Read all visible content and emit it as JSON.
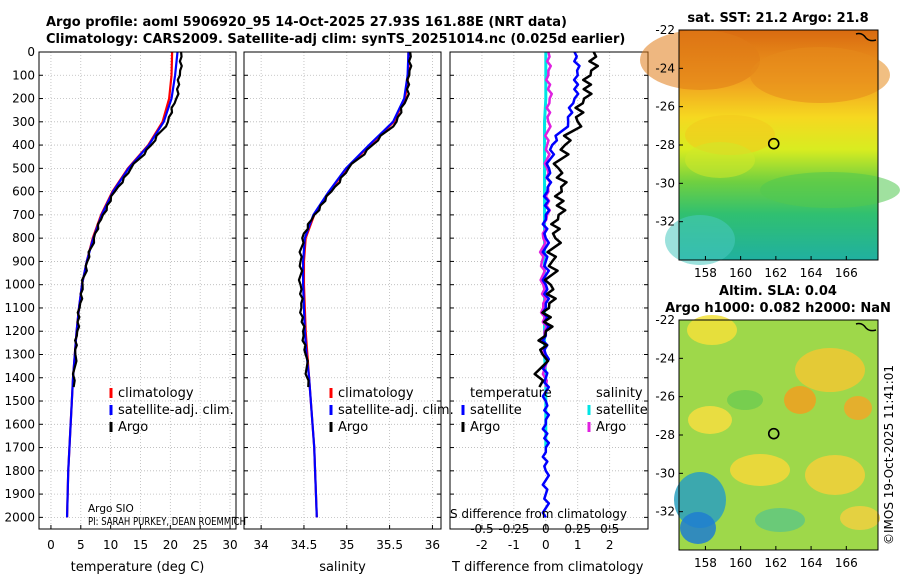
{
  "figure": {
    "title_line1": "Argo profile: aoml 5906920_95 14-Oct-2025 27.93S 161.88E (NRT data)",
    "title_line2": "Climatology: CARS2009. Satellite-adj clim: synTS_20251014.nc (0.025d earlier)",
    "footer_left_1": "Argo SIO",
    "footer_left_2": "PI: SARAH PURKEY, DEAN ROEMMICH",
    "watermark": "©IMOS 19-Oct-2025 11:41:01",
    "colors": {
      "climatology": "#ff0000",
      "satellite": "#0000ff",
      "argo": "#000000",
      "sal_satellite": "#00e5e5",
      "sal_argo": "#e020e0"
    }
  },
  "chart_data": [
    {
      "name": "temperature-profile",
      "type": "line",
      "xlabel": "temperature (deg C)",
      "ylabel": "",
      "xlim": [
        -2,
        31
      ],
      "ylim": [
        2050,
        0
      ],
      "xticks": [
        0,
        5,
        10,
        15,
        20,
        25,
        30
      ],
      "yticks": [
        0,
        100,
        200,
        300,
        400,
        500,
        600,
        700,
        800,
        900,
        1000,
        1100,
        1200,
        1300,
        1400,
        1500,
        1600,
        1700,
        1800,
        1900,
        2000
      ],
      "legend": [
        "climatology",
        "satellite-adj. clim.",
        "Argo"
      ],
      "legend_position": "lower-right",
      "series": [
        {
          "name": "climatology",
          "color": "#ff0000",
          "x": [
            20.3,
            20.2,
            19.8,
            18.7,
            16.3,
            12.9,
            10.3,
            8.4,
            7.0,
            6.0,
            5.2,
            4.7,
            4.3,
            4.0,
            3.7,
            3.5,
            3.3,
            3.1,
            2.9,
            2.8,
            2.7
          ],
          "y": [
            0,
            100,
            200,
            300,
            400,
            500,
            600,
            700,
            800,
            900,
            1000,
            1100,
            1200,
            1300,
            1400,
            1500,
            1600,
            1700,
            1800,
            1900,
            2000
          ]
        },
        {
          "name": "satellite-adj. clim.",
          "color": "#0000ff",
          "x": [
            21.2,
            20.8,
            20.2,
            18.9,
            16.4,
            13.0,
            10.4,
            8.5,
            7.1,
            6.0,
            5.2,
            4.7,
            4.3,
            4.0,
            3.7,
            3.5,
            3.3,
            3.1,
            2.9,
            2.8,
            2.7
          ],
          "y": [
            0,
            100,
            200,
            300,
            400,
            500,
            600,
            700,
            800,
            900,
            1000,
            1100,
            1200,
            1300,
            1400,
            1500,
            1600,
            1700,
            1800,
            1900,
            2000
          ]
        },
        {
          "name": "Argo",
          "color": "#000000",
          "x": [
            21.8,
            21.6,
            21.0,
            19.6,
            16.8,
            13.4,
            10.7,
            8.7,
            7.2,
            6.1,
            5.3,
            4.8,
            4.4,
            4.1,
            3.8
          ],
          "y": [
            0,
            100,
            200,
            300,
            400,
            500,
            600,
            700,
            800,
            900,
            1000,
            1100,
            1200,
            1300,
            1440
          ]
        }
      ]
    },
    {
      "name": "salinity-profile",
      "type": "line",
      "xlabel": "salinity",
      "ylabel": "",
      "xlim": [
        33.8,
        36.1
      ],
      "ylim": [
        2050,
        0
      ],
      "xticks": [
        34,
        34.5,
        35,
        35.5,
        36
      ],
      "legend": [
        "climatology",
        "satellite-adj. clim.",
        "Argo"
      ],
      "legend_position": "lower-right",
      "series": [
        {
          "name": "climatology",
          "color": "#ff0000",
          "x": [
            35.72,
            35.72,
            35.68,
            35.55,
            35.27,
            35.0,
            34.8,
            34.62,
            34.52,
            34.5,
            34.5,
            34.51,
            34.52,
            34.54,
            34.56,
            34.58,
            34.6,
            34.62,
            34.63,
            34.64,
            34.65
          ],
          "y": [
            0,
            100,
            200,
            300,
            400,
            500,
            600,
            700,
            800,
            900,
            1000,
            1100,
            1200,
            1300,
            1400,
            1500,
            1600,
            1700,
            1800,
            1900,
            2000
          ]
        },
        {
          "name": "satellite-adj. clim.",
          "color": "#0000ff",
          "x": [
            35.72,
            35.71,
            35.67,
            35.54,
            35.26,
            34.99,
            34.79,
            34.61,
            34.51,
            34.49,
            34.49,
            34.5,
            34.51,
            34.53,
            34.56,
            34.58,
            34.6,
            34.62,
            34.63,
            34.64,
            34.65
          ],
          "y": [
            0,
            100,
            200,
            300,
            400,
            500,
            600,
            700,
            800,
            900,
            1000,
            1100,
            1200,
            1300,
            1400,
            1500,
            1600,
            1700,
            1800,
            1900,
            2000
          ]
        },
        {
          "name": "Argo",
          "color": "#000000",
          "x": [
            35.74,
            35.73,
            35.7,
            35.58,
            35.3,
            35.02,
            34.82,
            34.62,
            34.48,
            34.46,
            34.46,
            34.47,
            34.49,
            34.52,
            34.55
          ],
          "y": [
            0,
            100,
            200,
            300,
            400,
            500,
            600,
            700,
            800,
            900,
            1000,
            1100,
            1200,
            1300,
            1440
          ]
        }
      ]
    },
    {
      "name": "difference-profile",
      "type": "line",
      "xlabel": "T difference from climatology",
      "top_label": "S difference from climatology",
      "xlim": [
        -3,
        3.2
      ],
      "ylim": [
        2050,
        0
      ],
      "xticks": [
        -2,
        -1,
        0,
        1,
        2
      ],
      "top_ticks": [
        "-0.5",
        "-0.25",
        "0",
        "0.25",
        "0.5"
      ],
      "legend_temperature_title": "temperature",
      "legend_salinity_title": "salinity",
      "legend_temperature": [
        "satellite",
        "Argo"
      ],
      "legend_salinity": [
        "satellite",
        "Argo"
      ],
      "series": [
        {
          "name": "temperature satellite",
          "color": "#0000ff",
          "x": [
            0.9,
            1.0,
            0.9,
            0.7,
            0.2,
            0.1,
            0.05,
            0.0,
            0.0,
            0.0,
            0.0,
            0.0,
            0.0,
            0.0,
            0.0,
            0.0,
            0.0,
            0.0,
            0.0,
            0.0,
            0.0
          ],
          "y": [
            0,
            100,
            200,
            300,
            400,
            500,
            600,
            700,
            800,
            900,
            1000,
            1100,
            1200,
            1300,
            1400,
            1500,
            1600,
            1700,
            1800,
            1900,
            2000
          ]
        },
        {
          "name": "temperature Argo",
          "color": "#000000",
          "x": [
            1.5,
            1.4,
            1.2,
            1.0,
            0.6,
            0.4,
            0.5,
            0.4,
            0.3,
            0.2,
            0.15,
            0.1,
            0.0,
            -0.1,
            -0.2
          ],
          "y": [
            0,
            100,
            200,
            300,
            400,
            500,
            600,
            700,
            800,
            900,
            1000,
            1100,
            1200,
            1300,
            1440
          ]
        },
        {
          "name": "salinity satellite",
          "color": "#00e5e5",
          "x": [
            0.0,
            0.0,
            0.0,
            -0.01,
            -0.01,
            -0.01,
            -0.01,
            -0.01,
            -0.01,
            -0.01,
            -0.01,
            -0.01,
            -0.01,
            -0.01,
            0.0,
            0.0,
            0.0,
            0.0
          ],
          "y": [
            0,
            100,
            200,
            300,
            400,
            500,
            600,
            700,
            800,
            900,
            1000,
            1100,
            1200,
            1300,
            1400,
            1500,
            1600,
            1700
          ]
        },
        {
          "name": "salinity Argo",
          "color": "#e020e0",
          "x": [
            0.02,
            0.02,
            0.03,
            0.02,
            0.01,
            0.01,
            0.02,
            0.01,
            -0.02,
            -0.03,
            -0.02,
            -0.02,
            -0.01,
            -0.01,
            0.0
          ],
          "y": [
            0,
            100,
            200,
            300,
            400,
            500,
            600,
            700,
            800,
            900,
            1000,
            1100,
            1200,
            1300,
            1440
          ]
        }
      ]
    },
    {
      "name": "sst-map",
      "type": "heatmap",
      "title": "sat. SST: 21.2 Argo: 21.8",
      "xlim": [
        156.5,
        167.8
      ],
      "ylim": [
        -34,
        -22
      ],
      "xticks": [
        158,
        160,
        162,
        164,
        166
      ],
      "yticks": [
        -22,
        -24,
        -26,
        -28,
        -30,
        -32
      ],
      "marker": {
        "lon": 161.88,
        "lat": -27.93
      }
    },
    {
      "name": "sla-map",
      "type": "heatmap",
      "title_line1": "Altim. SLA: 0.04",
      "title_line2": "Argo h1000: 0.082 h2000: NaN",
      "xlim": [
        156.5,
        167.8
      ],
      "ylim": [
        -34,
        -22
      ],
      "xticks": [
        158,
        160,
        162,
        164,
        166
      ],
      "yticks": [
        -22,
        -24,
        -26,
        -28,
        -30,
        -32
      ],
      "marker": {
        "lon": 161.88,
        "lat": -27.93
      }
    }
  ]
}
